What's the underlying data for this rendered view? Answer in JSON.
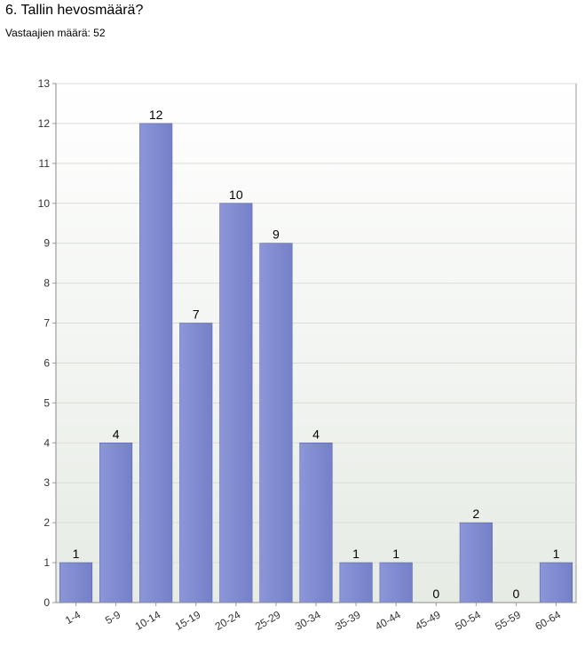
{
  "question": {
    "title": "6. Tallin hevosmäärä?",
    "respondents_label": "Vastaajien määrä: 52"
  },
  "colors": {
    "bar_fill_top": "#8c96d8",
    "bar_fill_bottom": "#7480c8",
    "bar_stroke": "#5a66b0",
    "plot_bg_top": "#ffffff",
    "plot_bg_bottom": "#e6ebe4",
    "grid": "#d9ddd6",
    "axis": "#9a9a9a"
  },
  "chart_data": {
    "type": "bar",
    "categories": [
      "1-4",
      "5-9",
      "10-14",
      "15-19",
      "20-24",
      "25-29",
      "30-34",
      "35-39",
      "40-44",
      "45-49",
      "50-54",
      "55-59",
      "60-64"
    ],
    "values": [
      1,
      4,
      12,
      7,
      10,
      9,
      4,
      1,
      1,
      0,
      2,
      0,
      1
    ],
    "ylim": [
      0,
      13
    ],
    "yticks": [
      0,
      1,
      2,
      3,
      4,
      5,
      6,
      7,
      8,
      9,
      10,
      11,
      12,
      13
    ],
    "grid": true,
    "data_labels": true,
    "legend": false
  }
}
